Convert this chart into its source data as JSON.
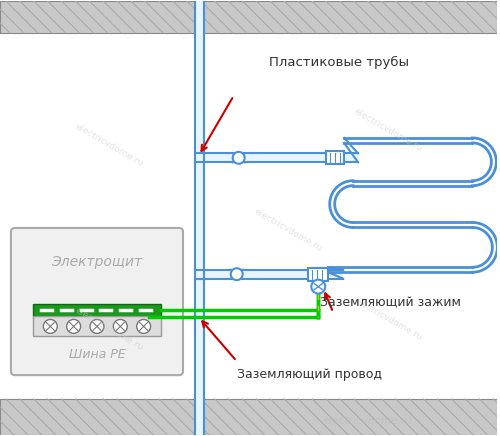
{
  "bg_color": "#ffffff",
  "wall_fill": "#c8c8c8",
  "pipe_color": "#4a90d9",
  "pipe_fill": "#e8f4ff",
  "gc": "#00cc00",
  "yc": "#cccc00",
  "rc": "#cc0000",
  "bus_green": "#1a9a1a",
  "panel_bg": "#f0f0f0",
  "panel_border": "#aaaaaa",
  "term_bg": "#dddddd",
  "text_dark": "#333333",
  "text_gray": "#aaaaaa",
  "wm_color": "#cccccc",
  "label_pipes": "Пластиковые трубы",
  "label_clamp": "Заземляющий зажим",
  "label_wire": "Заземляющий провод",
  "label_panel": "Электрощит",
  "label_bus": "Шина PE",
  "watermark": "electricvdome.ru"
}
